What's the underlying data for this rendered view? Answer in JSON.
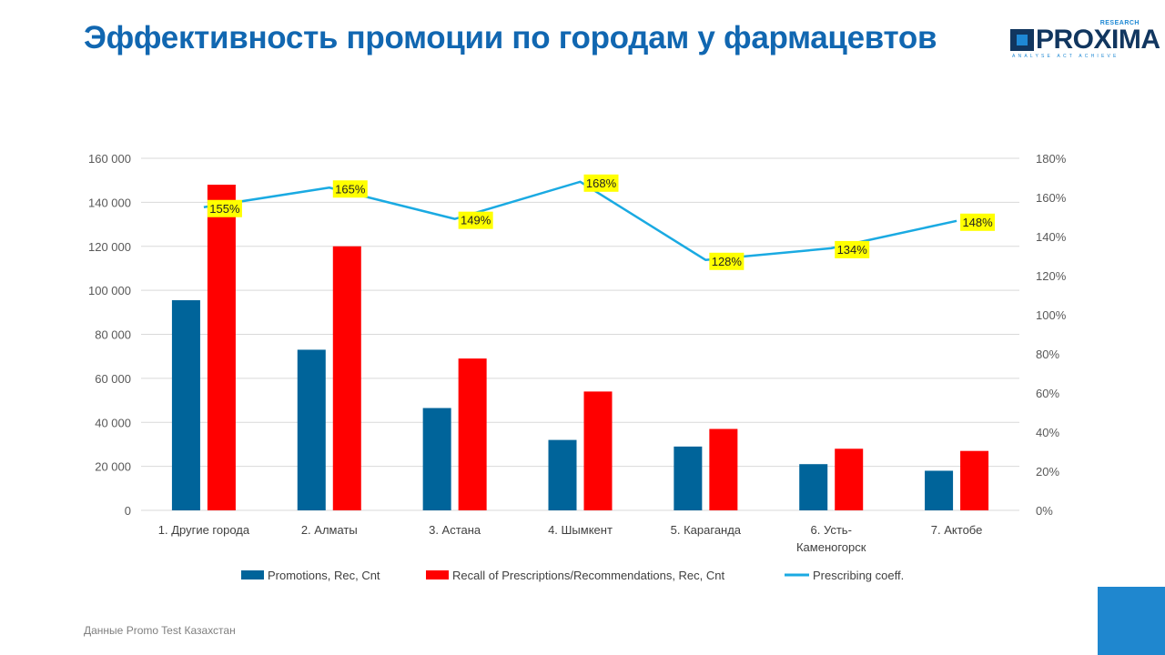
{
  "header": {
    "title": "Эффективность промоции по городам у фармацевтов"
  },
  "logo": {
    "name": "PROXIMA",
    "sub": "RESEARCH",
    "tagline": "ANALYSE  ACT  ACHIEVE"
  },
  "footer": {
    "source": "Данные Promo  Test Казахстан"
  },
  "colors": {
    "title": "#1167B1",
    "promotions": "#00649A",
    "recall": "#FF0000",
    "coeff_line": "#1AAAE2",
    "label_bg": "#FFFF00",
    "corner": "#1F87CF"
  },
  "chart_data": {
    "type": "bar",
    "title": "",
    "categories": [
      [
        "1. Другие города"
      ],
      [
        "2. Алматы"
      ],
      [
        "3. Астана"
      ],
      [
        "4. Шымкент"
      ],
      [
        "5. Караганда"
      ],
      [
        "6. Усть-",
        "Каменогорск"
      ],
      [
        "7. Актобе"
      ]
    ],
    "series": [
      {
        "name": "Promotions, Rec, Cnt",
        "type": "bar",
        "axis": "left",
        "color": "#00649A",
        "values": [
          95500,
          73000,
          46500,
          32000,
          29000,
          21000,
          18000
        ]
      },
      {
        "name": "Recall of Prescriptions/Recommendations, Rec, Cnt",
        "type": "bar",
        "axis": "left",
        "color": "#FF0000",
        "values": [
          148000,
          120000,
          69000,
          54000,
          37000,
          28000,
          27000
        ]
      },
      {
        "name": "Prescribing coeff.",
        "type": "line",
        "axis": "right",
        "color": "#1AAAE2",
        "values": [
          1.55,
          1.65,
          1.49,
          1.68,
          1.28,
          1.34,
          1.48
        ],
        "labels": [
          "155%",
          "165%",
          "149%",
          "168%",
          "128%",
          "134%",
          "148%"
        ]
      }
    ],
    "ylim": [
      0,
      160000
    ],
    "yticks": [
      "0",
      "20 000",
      "40 000",
      "60 000",
      "80 000",
      "100 000",
      "120 000",
      "140 000",
      "160 000"
    ],
    "y2lim": [
      0,
      1.8
    ],
    "y2ticks": [
      "0%",
      "20%",
      "40%",
      "60%",
      "80%",
      "100%",
      "120%",
      "140%",
      "160%",
      "180%"
    ],
    "grid": true,
    "legend_position": "bottom"
  }
}
